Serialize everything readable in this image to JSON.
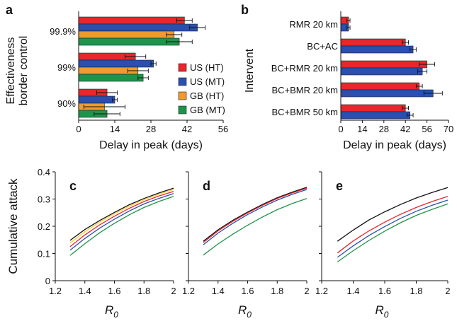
{
  "colors": {
    "US (HT)": "#e8262b",
    "US (MT)": "#2a4fb0",
    "GB (HT)": "#f29a2e",
    "GB (MT)": "#20934a",
    "black": "#111111",
    "red": "#e8262b",
    "blue": "#2a4fb0",
    "green": "#20934a",
    "yellow": "#f2d23a"
  },
  "chart_data": [
    {
      "id": "a",
      "panel_label": "a",
      "type": "bar",
      "orientation": "horizontal",
      "groups": [
        "99.9%",
        "99%",
        "90%"
      ],
      "ylabel": [
        "Effectiveness",
        "border control"
      ],
      "xlabel": "Delay in peak (days)",
      "xlim": [
        0,
        56
      ],
      "xticks": [
        "0",
        "14",
        "28",
        "42",
        "56"
      ],
      "legend": [
        "US (HT)",
        "US (MT)",
        "GB (HT)",
        "GB (MT)"
      ],
      "series": [
        {
          "name": "US (HT)",
          "values": [
            41,
            22,
            11
          ],
          "errors": [
            3,
            4,
            4
          ]
        },
        {
          "name": "US (MT)",
          "values": [
            46,
            29,
            14
          ],
          "errors": [
            3,
            1,
            1
          ]
        },
        {
          "name": "GB (HT)",
          "values": [
            37,
            23,
            10
          ],
          "errors": [
            3,
            4,
            8
          ]
        },
        {
          "name": "GB (MT)",
          "values": [
            39,
            25,
            11
          ],
          "errors": [
            5,
            2,
            5
          ]
        }
      ]
    },
    {
      "id": "b",
      "panel_label": "b",
      "type": "bar",
      "orientation": "horizontal",
      "groups": [
        "RMR 20 km",
        "BC+AC",
        "BC+RMR 20 km",
        "BC+BMR 20 km",
        "BC+BMR 50 km"
      ],
      "ylabel": [
        "Intervent"
      ],
      "xlabel": "Delay in peak (days)",
      "xlim": [
        0,
        70
      ],
      "xticks": [
        "0",
        "14",
        "28",
        "42",
        "56",
        "70"
      ],
      "series": [
        {
          "name": "US (HT)",
          "values": [
            5,
            42,
            56,
            51,
            42
          ],
          "errors": [
            1,
            2,
            5,
            2,
            2
          ]
        },
        {
          "name": "US (MT)",
          "values": [
            5,
            47,
            53,
            60,
            45
          ],
          "errors": [
            1,
            2,
            3,
            6,
            2
          ]
        }
      ]
    },
    {
      "id": "c",
      "panel_label": "c",
      "type": "line",
      "ylabel": "Cumulative attack",
      "xlabel": "R0",
      "xlim": [
        1.2,
        2
      ],
      "ylim": [
        0,
        0.4
      ],
      "xticks": [
        "1.2",
        "1.4",
        "1.6",
        "1.8",
        "2"
      ],
      "yticks": [
        "0",
        "0.1",
        "0.2",
        "0.3",
        "0.4"
      ],
      "x": [
        1.3,
        1.4,
        1.5,
        1.6,
        1.7,
        1.8,
        1.9,
        2.0
      ],
      "series": [
        {
          "color": "black",
          "values": [
            0.148,
            0.188,
            0.221,
            0.251,
            0.279,
            0.302,
            0.322,
            0.34
          ]
        },
        {
          "color": "yellow",
          "values": [
            0.138,
            0.18,
            0.215,
            0.246,
            0.274,
            0.298,
            0.318,
            0.335
          ]
        },
        {
          "color": "red",
          "values": [
            0.125,
            0.168,
            0.205,
            0.237,
            0.266,
            0.291,
            0.311,
            0.328
          ]
        },
        {
          "color": "blue",
          "values": [
            0.112,
            0.155,
            0.193,
            0.226,
            0.256,
            0.282,
            0.302,
            0.32
          ]
        },
        {
          "color": "green",
          "values": [
            0.093,
            0.136,
            0.176,
            0.211,
            0.242,
            0.269,
            0.291,
            0.31
          ]
        }
      ]
    },
    {
      "id": "d",
      "panel_label": "d",
      "type": "line",
      "xlabel": "R0",
      "xlim": [
        1.2,
        2
      ],
      "ylim": [
        0,
        0.4
      ],
      "xticks": [
        "1.2",
        "1.4",
        "1.6",
        "1.8",
        "2"
      ],
      "x": [
        1.3,
        1.4,
        1.5,
        1.6,
        1.7,
        1.8,
        1.9,
        2.0
      ],
      "series": [
        {
          "color": "black",
          "values": [
            0.145,
            0.187,
            0.222,
            0.252,
            0.28,
            0.305,
            0.325,
            0.343
          ]
        },
        {
          "color": "red",
          "values": [
            0.14,
            0.183,
            0.218,
            0.249,
            0.277,
            0.302,
            0.322,
            0.34
          ]
        },
        {
          "color": "blue",
          "values": [
            0.132,
            0.175,
            0.211,
            0.243,
            0.271,
            0.296,
            0.317,
            0.335
          ]
        },
        {
          "color": "green",
          "values": [
            0.094,
            0.135,
            0.171,
            0.204,
            0.234,
            0.261,
            0.283,
            0.302
          ]
        }
      ]
    },
    {
      "id": "e",
      "panel_label": "e",
      "type": "line",
      "xlabel": "R0",
      "xlim": [
        1.2,
        2
      ],
      "ylim": [
        0,
        0.4
      ],
      "xticks": [
        "1.2",
        "1.4",
        "1.6",
        "1.8",
        "2"
      ],
      "x": [
        1.3,
        1.4,
        1.5,
        1.6,
        1.7,
        1.8,
        1.9,
        2.0
      ],
      "series": [
        {
          "color": "black",
          "values": [
            0.145,
            0.186,
            0.223,
            0.253,
            0.28,
            0.304,
            0.324,
            0.342
          ]
        },
        {
          "color": "red",
          "values": [
            0.102,
            0.146,
            0.183,
            0.215,
            0.244,
            0.269,
            0.291,
            0.31
          ]
        },
        {
          "color": "blue",
          "values": [
            0.086,
            0.128,
            0.166,
            0.199,
            0.229,
            0.255,
            0.277,
            0.296
          ]
        },
        {
          "color": "green",
          "values": [
            0.069,
            0.11,
            0.148,
            0.182,
            0.213,
            0.24,
            0.262,
            0.282
          ]
        }
      ]
    }
  ]
}
